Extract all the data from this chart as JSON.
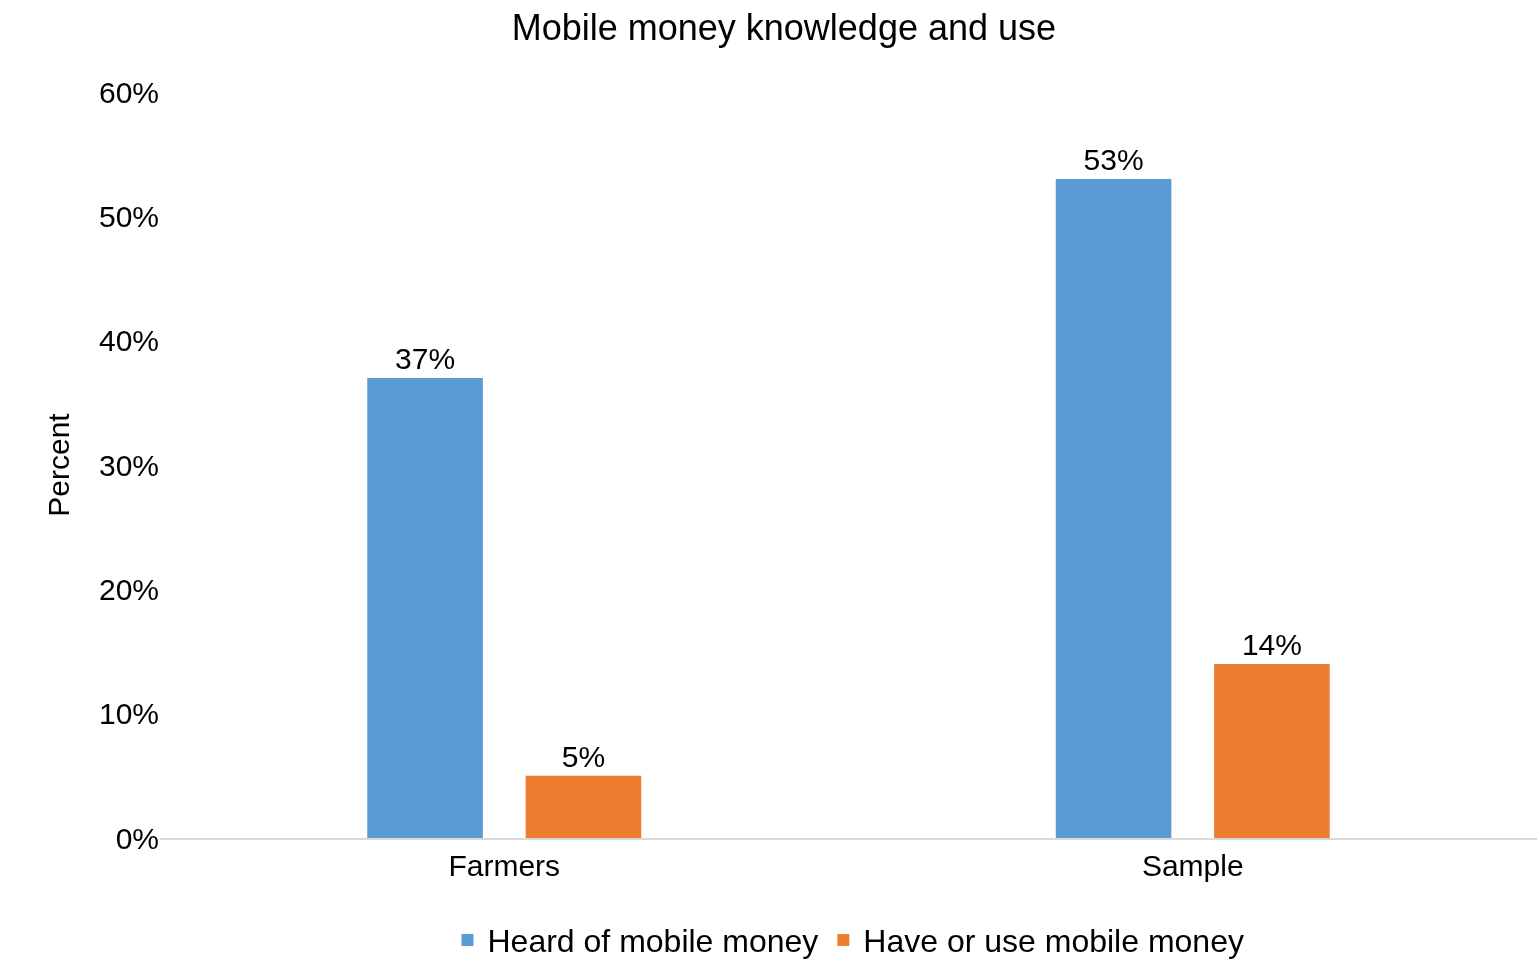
{
  "chart_data": {
    "type": "bar",
    "title": "Mobile money knowledge and use",
    "ylabel": "Percent",
    "categories": [
      "Farmers",
      "Sample"
    ],
    "series": [
      {
        "name": "Heard of mobile money",
        "color": "#5b9bd5",
        "values": [
          37,
          53
        ],
        "value_labels": [
          "37%",
          "53%"
        ]
      },
      {
        "name": "Have or use mobile money",
        "color": "#ed7d31",
        "values": [
          5,
          14
        ],
        "value_labels": [
          "5%",
          "14%"
        ]
      }
    ],
    "ylim": [
      0,
      60
    ],
    "yticks": [
      {
        "value": 0,
        "label": "0%"
      },
      {
        "value": 10,
        "label": "10%"
      },
      {
        "value": 20,
        "label": "20%"
      },
      {
        "value": 30,
        "label": "30%"
      },
      {
        "value": 40,
        "label": "40%"
      },
      {
        "value": 50,
        "label": "50%"
      },
      {
        "value": 60,
        "label": "60%"
      }
    ],
    "legend": "bottom"
  }
}
